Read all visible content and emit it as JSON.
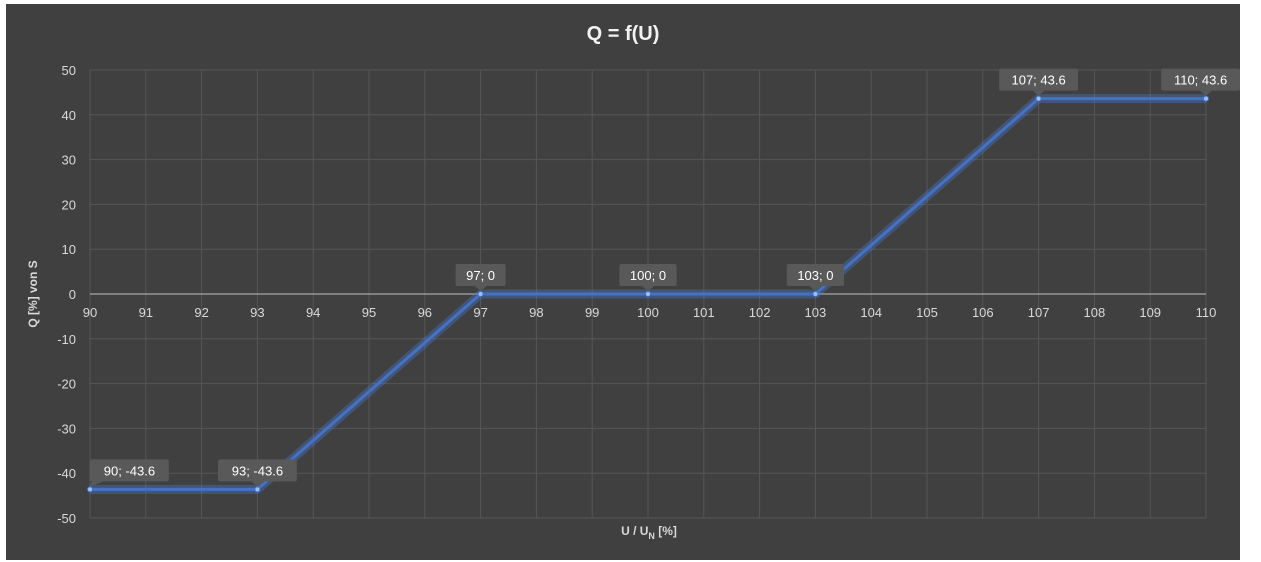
{
  "chart_data": {
    "type": "line",
    "title": "Q = f(U)",
    "xlabel_main": "U / U",
    "xlabel_sub": "N",
    "xlabel_tail": " [%]",
    "ylabel": "Q [%] von S",
    "xlim": [
      90,
      110
    ],
    "ylim": [
      -50,
      50
    ],
    "x_ticks": [
      90,
      91,
      92,
      93,
      94,
      95,
      96,
      97,
      98,
      99,
      100,
      101,
      102,
      103,
      104,
      105,
      106,
      107,
      108,
      109,
      110
    ],
    "y_ticks": [
      50,
      40,
      30,
      20,
      10,
      0,
      -10,
      -20,
      -30,
      -40,
      -50
    ],
    "grid": true,
    "series": [
      {
        "x": [
          90,
          93,
          97,
          100,
          103,
          107,
          110
        ],
        "y": [
          -43.6,
          -43.6,
          0,
          0,
          0,
          43.6,
          43.6
        ],
        "labels": [
          "90; -43.6",
          "93; -43.6",
          "97; 0",
          "100; 0",
          "103; 0",
          "107; 43.6",
          "110; 43.6"
        ],
        "color": "#4472c4"
      }
    ]
  }
}
